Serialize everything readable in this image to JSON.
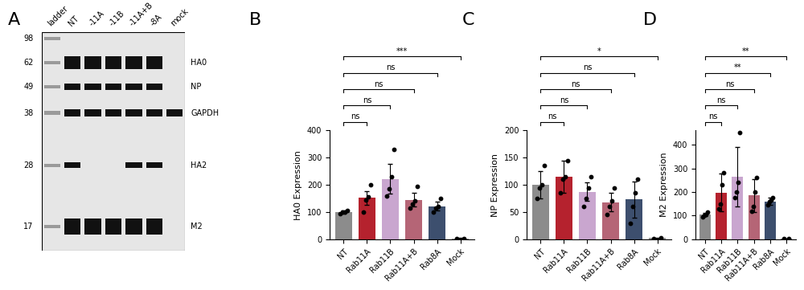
{
  "panel_labels": [
    "A",
    "B",
    "C",
    "D"
  ],
  "blot": {
    "lanes": [
      "ladder",
      "NT",
      "-11A",
      "-11B",
      "-11A+B",
      "-8A",
      "mock"
    ],
    "ladder_kDa": [
      98,
      62,
      49,
      38,
      28,
      17
    ],
    "bands": [
      {
        "name": "HA0",
        "lanes": [
          "NT",
          "-11A",
          "-11B",
          "-11A+B",
          "-8A"
        ]
      },
      {
        "name": "NP",
        "lanes": [
          "NT",
          "-11A",
          "-11B",
          "-11A+B",
          "-8A"
        ]
      },
      {
        "name": "GAPDH",
        "lanes": [
          "NT",
          "-11A",
          "-11B",
          "-11A+B",
          "-8A",
          "mock"
        ]
      },
      {
        "name": "HA2",
        "lanes": [
          "NT",
          "-11A+B",
          "-8A"
        ]
      },
      {
        "name": "M2",
        "lanes": [
          "NT",
          "-11A",
          "-11B",
          "-11A+B",
          "-8A"
        ]
      }
    ]
  },
  "chart_data": [
    {
      "type": "bar",
      "categories": [
        "NT",
        "Rab11A",
        "Rab11B",
        "Rab11A+B",
        "Rab8A",
        "Mock"
      ],
      "values": [
        100,
        152,
        222,
        145,
        122,
        3
      ],
      "errors": [
        5,
        25,
        55,
        25,
        17,
        1
      ],
      "points": [
        [
          95,
          100,
          100,
          105
        ],
        [
          100,
          145,
          155,
          200
        ],
        [
          160,
          185,
          230,
          330
        ],
        [
          115,
          130,
          140,
          195
        ],
        [
          100,
          115,
          120,
          150
        ],
        [
          2,
          3
        ]
      ],
      "colors": [
        "#8c8c8c",
        "#b5222e",
        "#c9a6cf",
        "#b56576",
        "#3d4f6e",
        "#999999"
      ],
      "y_label": "HA0 Expression",
      "ylim": [
        0,
        400
      ],
      "yticks": [
        0,
        100,
        200,
        300,
        400
      ],
      "significance": [
        {
          "from": "NT",
          "to": "Rab11A",
          "label": "ns"
        },
        {
          "from": "NT",
          "to": "Rab11B",
          "label": "ns"
        },
        {
          "from": "NT",
          "to": "Rab11A+B",
          "label": "ns"
        },
        {
          "from": "NT",
          "to": "Rab8A",
          "label": "ns"
        },
        {
          "from": "NT",
          "to": "Mock",
          "label": "***"
        }
      ]
    },
    {
      "type": "bar",
      "categories": [
        "NT",
        "Rab11A",
        "Rab11B",
        "Rab11A+B",
        "Rab8A",
        "Mock"
      ],
      "values": [
        100,
        115,
        87,
        68,
        73,
        2
      ],
      "errors": [
        25,
        30,
        17,
        17,
        33,
        1
      ],
      "points": [
        [
          75,
          95,
          100,
          135
        ],
        [
          85,
          110,
          115,
          145
        ],
        [
          60,
          75,
          95,
          115
        ],
        [
          45,
          60,
          70,
          95
        ],
        [
          30,
          60,
          85,
          110
        ],
        [
          1,
          2
        ]
      ],
      "colors": [
        "#8c8c8c",
        "#b5222e",
        "#c9a6cf",
        "#b56576",
        "#3d4f6e",
        "#999999"
      ],
      "y_label": "NP Expression",
      "ylim": [
        0,
        200
      ],
      "yticks": [
        0,
        50,
        100,
        150,
        200
      ],
      "significance": [
        {
          "from": "NT",
          "to": "Rab11A",
          "label": "ns"
        },
        {
          "from": "NT",
          "to": "Rab11B",
          "label": "ns"
        },
        {
          "from": "NT",
          "to": "Rab11A+B",
          "label": "ns"
        },
        {
          "from": "NT",
          "to": "Rab8A",
          "label": "ns"
        },
        {
          "from": "NT",
          "to": "Mock",
          "label": "*"
        }
      ]
    },
    {
      "type": "bar",
      "categories": [
        "NT",
        "Rab11A",
        "Rab11B",
        "Rab11A+B",
        "Rab8A",
        "Mock"
      ],
      "values": [
        105,
        197,
        265,
        185,
        160,
        3
      ],
      "errors": [
        8,
        80,
        125,
        70,
        15,
        1
      ],
      "points": [
        [
          95,
          100,
          105,
          115
        ],
        [
          130,
          150,
          230,
          280
        ],
        [
          175,
          200,
          240,
          450
        ],
        [
          120,
          140,
          200,
          260
        ],
        [
          145,
          160,
          165,
          175
        ],
        [
          2,
          3
        ]
      ],
      "colors": [
        "#8c8c8c",
        "#b5222e",
        "#c9a6cf",
        "#b56576",
        "#3d4f6e",
        "#999999"
      ],
      "y_label": "M2 Expression",
      "ylim": [
        0,
        460
      ],
      "yticks": [
        0,
        100,
        200,
        300,
        400
      ],
      "significance": [
        {
          "from": "NT",
          "to": "Rab11A",
          "label": "ns"
        },
        {
          "from": "NT",
          "to": "Rab11B",
          "label": "ns"
        },
        {
          "from": "NT",
          "to": "Rab11A+B",
          "label": "ns"
        },
        {
          "from": "NT",
          "to": "Rab8A",
          "label": "**"
        },
        {
          "from": "NT",
          "to": "Mock",
          "label": "**"
        }
      ]
    }
  ]
}
